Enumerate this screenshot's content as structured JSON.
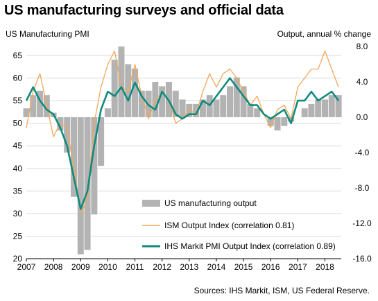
{
  "title": "US manufacturing surveys and official data",
  "source": "Sources: IHS Markit, ISM, US Federal Reserve.",
  "colors": {
    "bars": "#b3b3b3",
    "ism": "#f2a65a",
    "pmi": "#0f8a7c",
    "grid": "#d9d9d9"
  },
  "chart_data": {
    "type": "line",
    "left_axis_label": "US Manufacturing PMI",
    "right_axis_label": "Output, annual % change",
    "left_ylim": [
      20,
      67
    ],
    "left_ticks": [
      20,
      25,
      30,
      35,
      40,
      45,
      50,
      55,
      60,
      65
    ],
    "right_ylim": [
      -16,
      8
    ],
    "right_ticks": [
      "8.0",
      "4.0",
      "0.0",
      "-4.0",
      "-8.0",
      "-12.0",
      "-16.0"
    ],
    "right_tick_values": [
      8,
      4,
      0,
      -4,
      -8,
      -12,
      -16
    ],
    "xlim": [
      2007,
      2018.6
    ],
    "x_ticks": [
      "2007",
      "2008",
      "2009",
      "2010",
      "2011",
      "2012",
      "2013",
      "2014",
      "2015",
      "2016",
      "2017",
      "2018"
    ],
    "legend": [
      "US manufacturing output",
      "ISM Output Index (correlation 0.81)",
      "IHS Markit PMI Output Index (correlation 0.89)"
    ],
    "series": [
      {
        "name": "US manufacturing output",
        "axis": "right",
        "kind": "bar",
        "x": [
          2007.0,
          2007.25,
          2007.5,
          2007.75,
          2008.0,
          2008.25,
          2008.5,
          2008.75,
          2009.0,
          2009.25,
          2009.5,
          2009.75,
          2010.0,
          2010.25,
          2010.5,
          2010.75,
          2011.0,
          2011.25,
          2011.5,
          2011.75,
          2012.0,
          2012.25,
          2012.5,
          2012.75,
          2013.0,
          2013.25,
          2013.5,
          2013.75,
          2014.0,
          2014.25,
          2014.5,
          2014.75,
          2015.0,
          2015.25,
          2015.5,
          2015.75,
          2016.0,
          2016.25,
          2016.5,
          2016.75,
          2017.0,
          2017.25,
          2017.5,
          2017.75,
          2018.0,
          2018.25,
          2018.5
        ],
        "values": [
          1.0,
          2.5,
          3.0,
          2.5,
          0.5,
          -1.5,
          -4.0,
          -9.0,
          -15.5,
          -15.0,
          -11.0,
          -5.5,
          1.0,
          6.5,
          8.0,
          6.0,
          5.5,
          3.0,
          3.0,
          4.0,
          3.5,
          4.0,
          3.0,
          2.0,
          1.5,
          1.5,
          2.0,
          2.5,
          2.0,
          2.5,
          3.5,
          4.5,
          3.5,
          1.5,
          1.0,
          0.0,
          -1.0,
          -1.5,
          -1.0,
          -0.5,
          0.0,
          1.0,
          1.5,
          2.0,
          2.0,
          2.5,
          2.5
        ]
      },
      {
        "name": "ISM Output Index (correlation 0.81)",
        "axis": "left",
        "x": [
          2007.0,
          2007.25,
          2007.5,
          2007.75,
          2008.0,
          2008.25,
          2008.5,
          2008.75,
          2009.0,
          2009.25,
          2009.5,
          2009.75,
          2010.0,
          2010.25,
          2010.5,
          2010.75,
          2011.0,
          2011.25,
          2011.5,
          2011.75,
          2012.0,
          2012.25,
          2012.5,
          2012.75,
          2013.0,
          2013.25,
          2013.5,
          2013.75,
          2014.0,
          2014.25,
          2014.5,
          2014.75,
          2015.0,
          2015.25,
          2015.5,
          2015.75,
          2016.0,
          2016.25,
          2016.5,
          2016.75,
          2017.0,
          2017.25,
          2017.5,
          2017.75,
          2018.0,
          2018.25,
          2018.5
        ],
        "values": [
          49,
          57,
          61,
          54,
          47,
          50,
          49,
          40,
          30,
          33,
          50,
          58,
          63,
          66,
          58,
          57,
          63,
          56,
          51,
          55,
          57,
          55,
          50,
          51,
          53,
          52,
          57,
          61,
          58,
          61,
          62,
          60,
          57,
          54,
          56,
          52,
          49,
          53,
          54,
          51,
          58,
          60,
          62,
          62,
          66,
          62,
          58
        ]
      },
      {
        "name": "IHS Markit PMI Output Index (correlation 0.89)",
        "axis": "left",
        "x": [
          2007.0,
          2007.25,
          2007.5,
          2007.75,
          2008.0,
          2008.25,
          2008.5,
          2008.75,
          2009.0,
          2009.25,
          2009.5,
          2009.75,
          2010.0,
          2010.25,
          2010.5,
          2010.75,
          2011.0,
          2011.25,
          2011.5,
          2011.75,
          2012.0,
          2012.25,
          2012.5,
          2012.75,
          2013.0,
          2013.25,
          2013.5,
          2013.75,
          2014.0,
          2014.25,
          2014.5,
          2014.75,
          2015.0,
          2015.25,
          2015.5,
          2015.75,
          2016.0,
          2016.25,
          2016.5,
          2016.75,
          2017.0,
          2017.25,
          2017.5,
          2017.75,
          2018.0,
          2018.25,
          2018.5
        ],
        "values": [
          55,
          58,
          55,
          53,
          52,
          49,
          45,
          38,
          31,
          35,
          45,
          53,
          57,
          56,
          58,
          55,
          59,
          56,
          54,
          53,
          57,
          55,
          52,
          51,
          52,
          52,
          55,
          54,
          56,
          58,
          60,
          58,
          56,
          54,
          54,
          52,
          51,
          52,
          53,
          50,
          55,
          55,
          57,
          55,
          56,
          57,
          55
        ]
      }
    ]
  }
}
